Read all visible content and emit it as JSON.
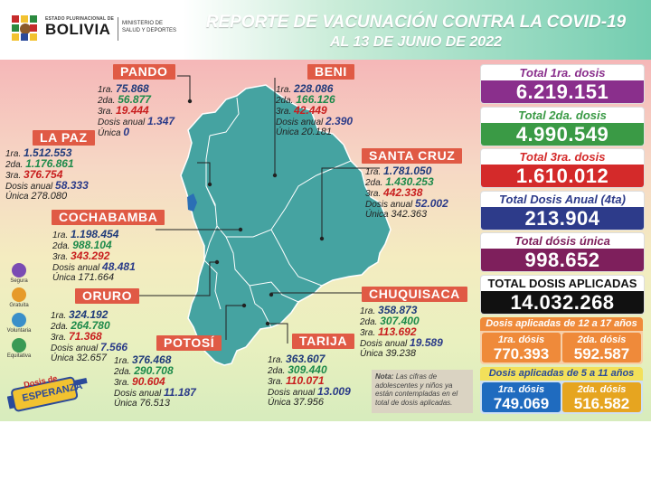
{
  "header": {
    "org_line": "ESTADO PLURINACIONAL DE",
    "country": "BOLIVIA",
    "ministry_line1": "MINISTERIO DE",
    "ministry_line2": "SALUD Y DEPORTES",
    "title": "REPORTE DE VACUNACIÓN CONTRA LA COVID-19",
    "date": "AL 13 DE JUNIO DE 2022"
  },
  "labels": {
    "d1": "1ra.",
    "d2": "2da.",
    "d3": "3ra.",
    "anual": "Dosis anual",
    "unica": "Única"
  },
  "departments": {
    "pando": {
      "name": "PANDO",
      "d1": "75.868",
      "d2": "56.877",
      "d3": "19.444",
      "anual": "1.347",
      "unica": "0"
    },
    "beni": {
      "name": "BENI",
      "d1": "228.086",
      "d2": "166.126",
      "d3": "42.449",
      "anual": "2.390",
      "unica": "20.181"
    },
    "lapaz": {
      "name": "LA PAZ",
      "d1": "1.512.553",
      "d2": "1.176.861",
      "d3": "376.754",
      "anual": "58.333",
      "unica": "278.080"
    },
    "santacruz": {
      "name": "SANTA CRUZ",
      "d1": "1.781.050",
      "d2": "1.430.253",
      "d3": "442.338",
      "anual": "52.002",
      "unica": "342.363"
    },
    "cochabamba": {
      "name": "COCHABAMBA",
      "d1": "1.198.454",
      "d2": "988.104",
      "d3": "343.292",
      "anual": "48.481",
      "unica": "171.664"
    },
    "oruro": {
      "name": "ORURO",
      "d1": "324.192",
      "d2": "264.780",
      "d3": "71.368",
      "anual": "7.566",
      "unica": "32.657"
    },
    "chuquisaca": {
      "name": "CHUQUISACA",
      "d1": "358.873",
      "d2": "307.400",
      "d3": "113.692",
      "anual": "19.589",
      "unica": "39.238"
    },
    "potosi": {
      "name": "POTOSÍ",
      "d1": "376.468",
      "d2": "290.708",
      "d3": "90.604",
      "anual": "11.187",
      "unica": "76.513"
    },
    "tarija": {
      "name": "TARIJA",
      "d1": "363.607",
      "d2": "309.440",
      "d3": "110.071",
      "anual": "13.009",
      "unica": "37.956"
    }
  },
  "totals": [
    {
      "label": "Total 1ra. dosis",
      "value": "6.219.151",
      "color": "#8a2f8c"
    },
    {
      "label": "Total 2da. dosis",
      "value": "4.990.549",
      "color": "#3a9a45"
    },
    {
      "label": "Total 3ra. dosis",
      "value": "1.610.012",
      "color": "#d42a2a"
    },
    {
      "label": "Total Dosis Anual (4ta)",
      "value": "213.904",
      "color": "#2d3b8a"
    },
    {
      "label": "Total dósis única",
      "value": "998.652",
      "color": "#7e1f5c"
    },
    {
      "label": "TOTAL DOSIS APLICADAS",
      "value": "14.032.268",
      "color": "#111111"
    }
  ],
  "age_12_17": {
    "title": "Dosis aplicadas de 12 a 17 años",
    "d1_label": "1ra. dósis",
    "d1": "770.393",
    "d2_label": "2da. dósis",
    "d2": "592.587",
    "color": "#ef8a3a"
  },
  "age_5_11": {
    "title": "Dosis aplicadas de 5 a 11 años",
    "d1_label": "1ra. dósis",
    "d1": "749.069",
    "d2_label": "2da. dósis",
    "d2": "516.582",
    "color": "#1f6bbf",
    "d2_color": "#e6a520"
  },
  "note": {
    "bold": "Nota:",
    "text": "Las cifras de adolescentes y niños ya están contempladas en el total de dosis aplicadas."
  },
  "side_icons": [
    {
      "label": "Segura",
      "icon": "shield-icon",
      "color": "#7a4bb3"
    },
    {
      "label": "Gratuita",
      "icon": "coin-icon",
      "color": "#e69a2a"
    },
    {
      "label": "Voluntaria",
      "icon": "hand-icon",
      "color": "#3a8fc9"
    },
    {
      "label": "Equitativa",
      "icon": "scale-icon",
      "color": "#3a9a55"
    }
  ],
  "badge": {
    "line1": "Dosis de",
    "line2": "ESPERANZA"
  }
}
